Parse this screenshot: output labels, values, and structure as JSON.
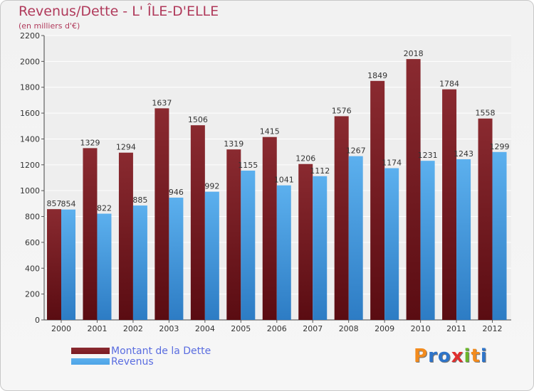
{
  "chart_data": {
    "type": "bar",
    "title": "Revenus/Dette - L' ÎLE-D'ELLE",
    "subtitle": "(en milliers d'€)",
    "categories": [
      "2000",
      "2001",
      "2002",
      "2003",
      "2004",
      "2005",
      "2006",
      "2007",
      "2008",
      "2009",
      "2010",
      "2011",
      "2012"
    ],
    "series": [
      {
        "name": "Montant de la Dette",
        "color": "#7a1a22",
        "values": [
          857,
          1329,
          1294,
          1637,
          1506,
          1319,
          1415,
          1206,
          1576,
          1849,
          2018,
          1784,
          1558
        ]
      },
      {
        "name": "Revenus",
        "color": "#4ea4e6",
        "values": [
          854,
          822,
          885,
          946,
          992,
          1155,
          1041,
          1112,
          1267,
          1174,
          1231,
          1243,
          1299
        ]
      }
    ],
    "ylim": [
      0,
      2200
    ],
    "yticks": [
      0,
      200,
      400,
      600,
      800,
      1000,
      1200,
      1400,
      1600,
      1800,
      2000,
      2200
    ],
    "grid": true,
    "legend_position": "bottom-left"
  },
  "logo": {
    "letters": [
      "P",
      "r",
      "o",
      "x",
      "i",
      "t",
      "i"
    ],
    "colors": [
      "#f28b1e",
      "#2e74c9",
      "#2e74c9",
      "#e0302f",
      "#6bb52b",
      "#f28b1e",
      "#2e74c9"
    ]
  }
}
